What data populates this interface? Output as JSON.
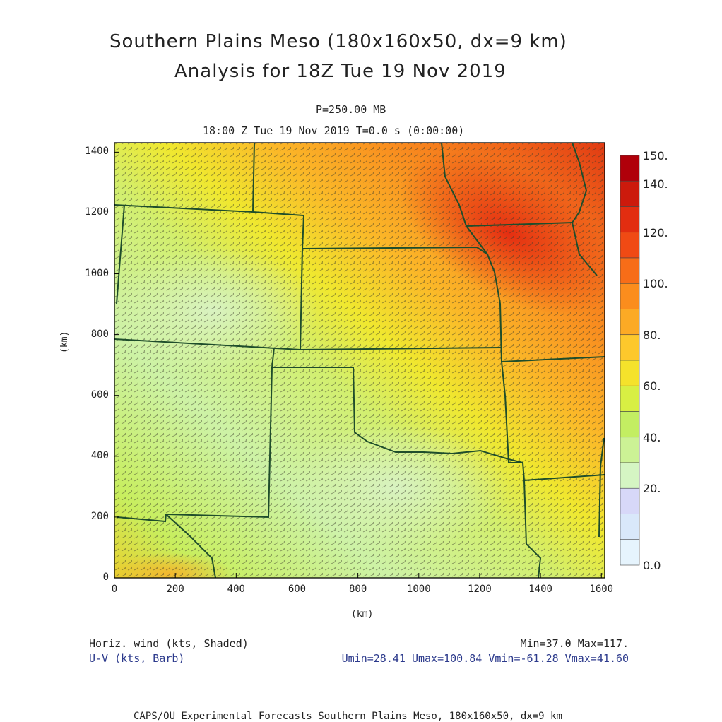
{
  "header": {
    "title_line1": "Southern Plains Meso (180x160x50, dx=9 km)",
    "title_line2": "Analysis for 18Z Tue 19 Nov 2019",
    "level": "P=250.00 MB",
    "time_line": "18:00 Z Tue 19 Nov 2019    T=0.0 s (0:00:00)"
  },
  "axes": {
    "x_label": "(km)",
    "y_label": "(km)",
    "x_ticks": [
      "0",
      "200",
      "400",
      "600",
      "800",
      "1000",
      "1200",
      "1400",
      "1600"
    ],
    "y_ticks": [
      "0",
      "200",
      "400",
      "600",
      "800",
      "1000",
      "1200",
      "1400"
    ],
    "x_range_km": [
      0,
      1611
    ],
    "y_range_km": [
      0,
      1431
    ]
  },
  "colorbar": {
    "labels": [
      "150.",
      "140.",
      "120.",
      "100.",
      "80.",
      "60.",
      "40.",
      "20.",
      "0.0"
    ],
    "colors": [
      "#b0000a",
      "#cc1a0c",
      "#e22d10",
      "#f04a14",
      "#f76d18",
      "#fb8d1d",
      "#fcaa25",
      "#fdc82c",
      "#f5e22b",
      "#d8ef43",
      "#c3ee62",
      "#ccf295",
      "#d5f5c3",
      "#d7d8f8",
      "#d9e8fa",
      "#e6f4fd"
    ]
  },
  "footer": {
    "field_label": "Horiz. wind (kts, Shaded)",
    "vector_label": "U-V (kts, Barb)",
    "minmax": "Min=37.0 Max=117.",
    "uv_stats": "Umin=28.41 Umax=100.84 Vmin=-61.28 Vmax=41.60",
    "credit": "CAPS/OU Experimental Forecasts  Southern Plains Meso, 180x160x50, dx=9 km"
  }
}
